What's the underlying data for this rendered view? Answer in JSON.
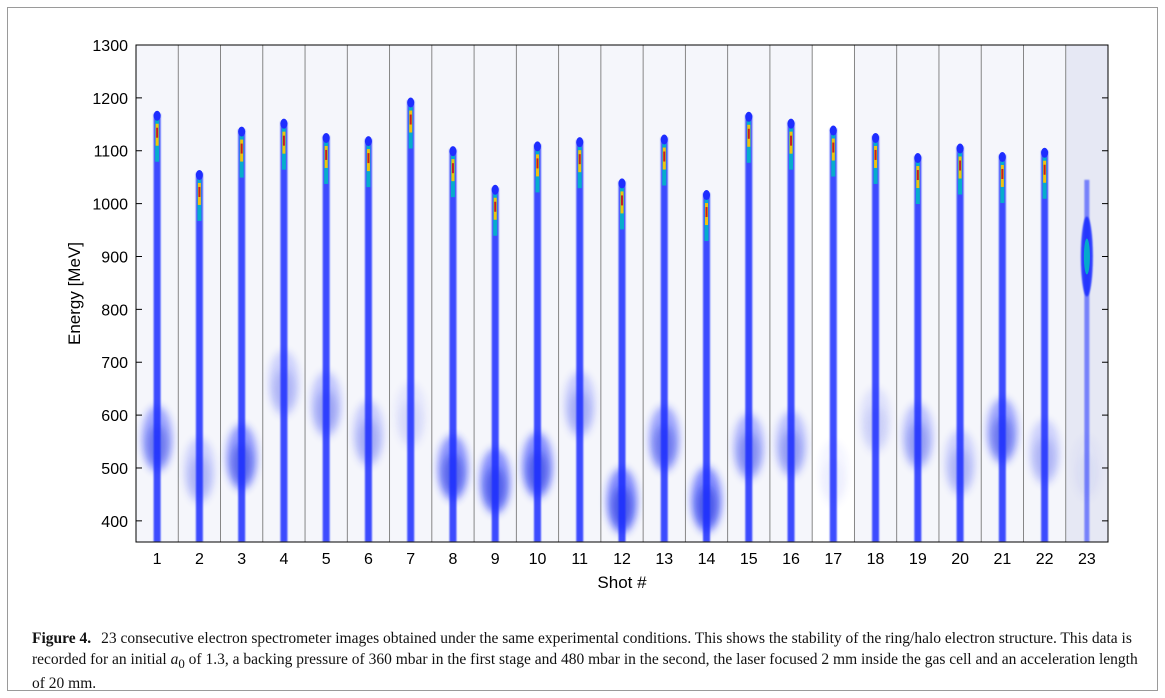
{
  "figure": {
    "label": "Figure 4.",
    "caption_before_symbol": "23 consecutive electron spectrometer images obtained under the same experimental conditions. This shows the stability of the ring/halo electron structure. This data is recorded for an initial ",
    "caption_symbol": "a",
    "caption_symbol_subscript": "0",
    "caption_after_symbol": " of 1.3, a backing pressure of 360 mbar in the first stage and 480 mbar in the second, the laser focused 2 mm inside the gas cell and an acceleration length of 20 mm."
  },
  "chart_data": {
    "type": "image-panels",
    "xlabel": "Shot #",
    "ylabel": "Energy [MeV]",
    "ylim": [
      360,
      1300
    ],
    "yticks": [
      400,
      500,
      600,
      700,
      800,
      900,
      1000,
      1100,
      1200,
      1300
    ],
    "categories": [
      "1",
      "2",
      "3",
      "4",
      "5",
      "6",
      "7",
      "8",
      "9",
      "10",
      "11",
      "12",
      "13",
      "14",
      "15",
      "16",
      "17",
      "18",
      "19",
      "20",
      "21",
      "22",
      "23"
    ],
    "grid": false,
    "colormap": [
      "#ffffff",
      "#1e2dff",
      "#00b7c7",
      "#f2c10f",
      "#c81e1e"
    ],
    "beam_peak_energy": [
      1170,
      1058,
      1140,
      1155,
      1128,
      1122,
      1195,
      1103,
      1030,
      1112,
      1120,
      1042,
      1125,
      1020,
      1168,
      1155,
      1142,
      1128,
      1090,
      1108,
      1092,
      1100,
      1045
    ],
    "halo_center_energy": [
      555,
      495,
      520,
      660,
      620,
      565,
      600,
      500,
      475,
      505,
      620,
      438,
      555,
      440,
      540,
      545,
      490,
      590,
      560,
      510,
      570,
      530,
      500
    ],
    "halo_relative_intensity": [
      0.75,
      0.35,
      0.85,
      0.35,
      0.45,
      0.4,
      0.15,
      0.9,
      0.95,
      0.95,
      0.4,
      1.0,
      0.75,
      1.0,
      0.6,
      0.5,
      0.08,
      0.2,
      0.5,
      0.35,
      0.75,
      0.35,
      0.05
    ]
  }
}
